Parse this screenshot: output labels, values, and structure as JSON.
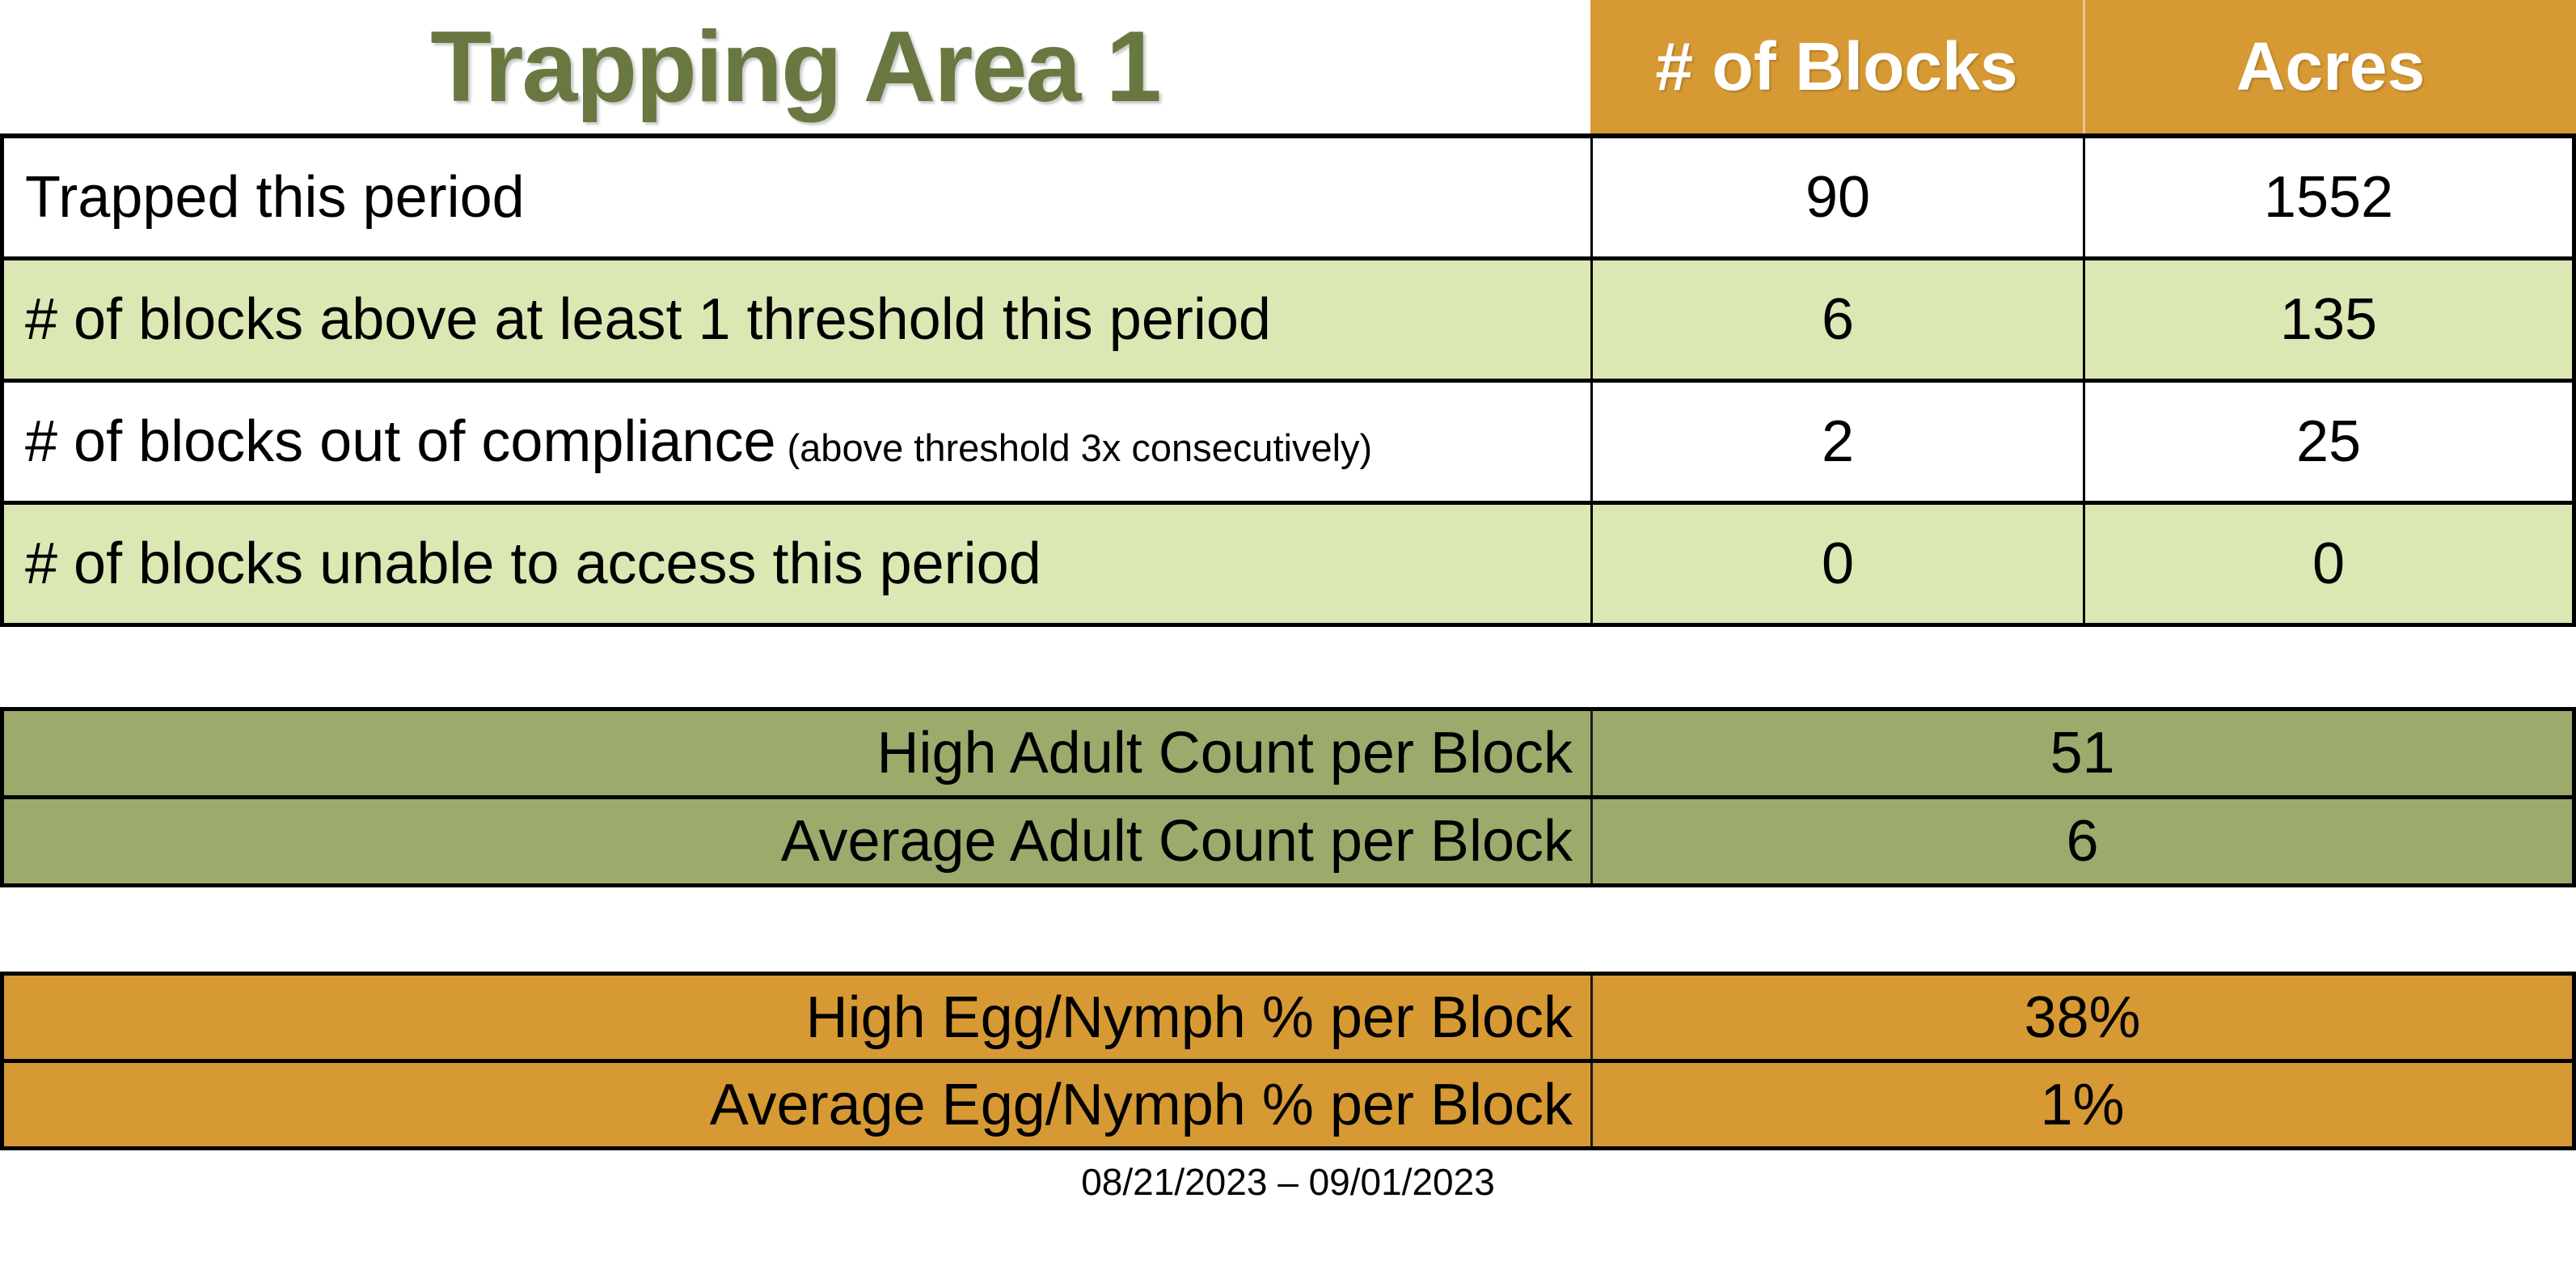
{
  "page": {
    "date_range": "08/21/2023 – 09/01/2023"
  },
  "colors": {
    "header_orange": "#D69933",
    "light_green": "#DCE8B4",
    "olive_green": "#9CAB6C",
    "title_green": "#697840",
    "border_black": "#000000"
  },
  "summary_table": {
    "title": "Trapping Area 1",
    "columns": [
      "# of Blocks",
      "Acres"
    ],
    "rows": [
      {
        "label": "Trapped this period",
        "blocks": "90",
        "acres": "1552"
      },
      {
        "label": "# of blocks above at least 1 threshold this period",
        "blocks": "6",
        "acres": "135"
      },
      {
        "label": "# of blocks out of compliance",
        "note": "(above threshold 3x consecutively)",
        "blocks": "2",
        "acres": "25"
      },
      {
        "label": "# of blocks unable to access this period",
        "blocks": "0",
        "acres": "0"
      }
    ]
  },
  "adult_counts": {
    "rows": [
      {
        "label": "High Adult Count per Block",
        "value": "51"
      },
      {
        "label": "Average Adult Count per Block",
        "value": "6"
      }
    ]
  },
  "egg_nymph": {
    "rows": [
      {
        "label": "High Egg/Nymph % per Block",
        "value": "38%"
      },
      {
        "label": "Average Egg/Nymph % per Block",
        "value": "1%"
      }
    ]
  }
}
